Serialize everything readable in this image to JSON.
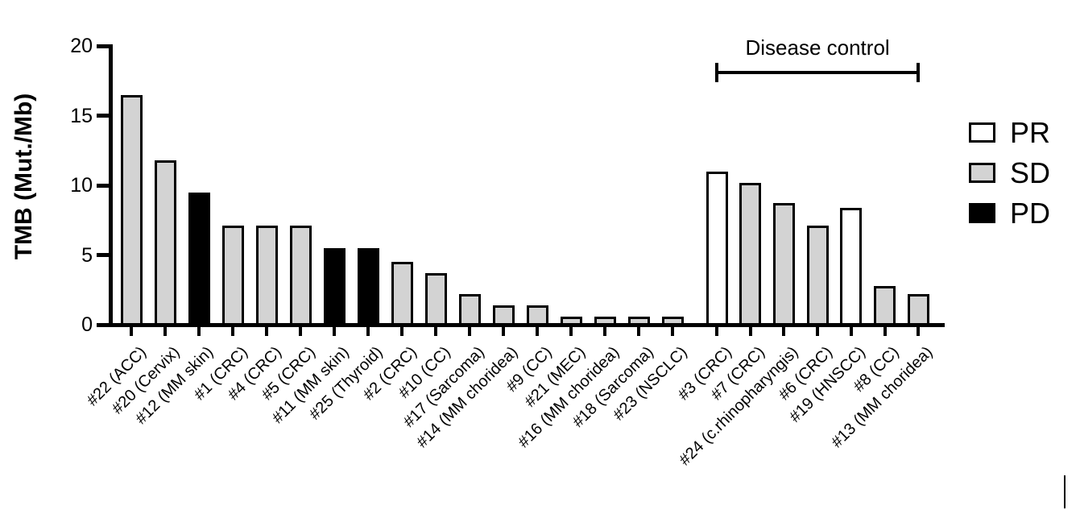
{
  "chart_data": {
    "type": "bar",
    "title": "",
    "xlabel": "",
    "ylabel": "TMB (Mut./Mb)",
    "ylim": [
      0,
      20
    ],
    "yticks": [
      0,
      5,
      10,
      15,
      20
    ],
    "grid": false,
    "categories": [
      "#22 (ACC)",
      "#20 (Cervix)",
      "#12 (MM skin)",
      "#1 (CRC)",
      "#4 (CRC)",
      "#5 (CRC)",
      "#11 (MM skin)",
      "#25 (Thyroid)",
      "#2 (CRC)",
      "#10 (CC)",
      "#17 (Sarcoma)",
      "#14 (MM choridea)",
      "#9 (CC)",
      "#21 (MEC)",
      "#16 (MM choridea)",
      "#18 (Sarcoma)",
      "#23 (NSCLC)",
      "#3 (CRC)",
      "#7 (CRC)",
      "#24 (c.rhinopharyngis)",
      "#6 (CRC)",
      "#19 (HNSCC)",
      "#8 (CC)",
      "#13 (MM choridea)"
    ],
    "values": [
      16.5,
      11.8,
      9.5,
      7.1,
      7.1,
      7.1,
      5.5,
      5.5,
      4.5,
      3.7,
      2.2,
      1.4,
      1.4,
      0.6,
      0.6,
      0.6,
      0.6,
      11.0,
      10.2,
      8.7,
      7.1,
      8.4,
      2.8,
      2.2
    ],
    "responses": [
      "SD",
      "SD",
      "PD",
      "SD",
      "SD",
      "SD",
      "PD",
      "PD",
      "SD",
      "SD",
      "SD",
      "SD",
      "SD",
      "SD",
      "SD",
      "SD",
      "SD",
      "PR",
      "SD",
      "SD",
      "SD",
      "PR",
      "SD",
      "SD"
    ],
    "annotation": {
      "label": "Disease control",
      "from_category": "#3 (CRC)",
      "to_category": "#13 (MM choridea)"
    },
    "legend": {
      "position": "right",
      "entries": [
        {
          "label": "PR",
          "color": "#ffffff"
        },
        {
          "label": "SD",
          "color": "#d3d3d3"
        },
        {
          "label": "PD",
          "color": "#000000"
        }
      ]
    },
    "bar_border_color": "#000000",
    "axis_color": "#000000"
  }
}
